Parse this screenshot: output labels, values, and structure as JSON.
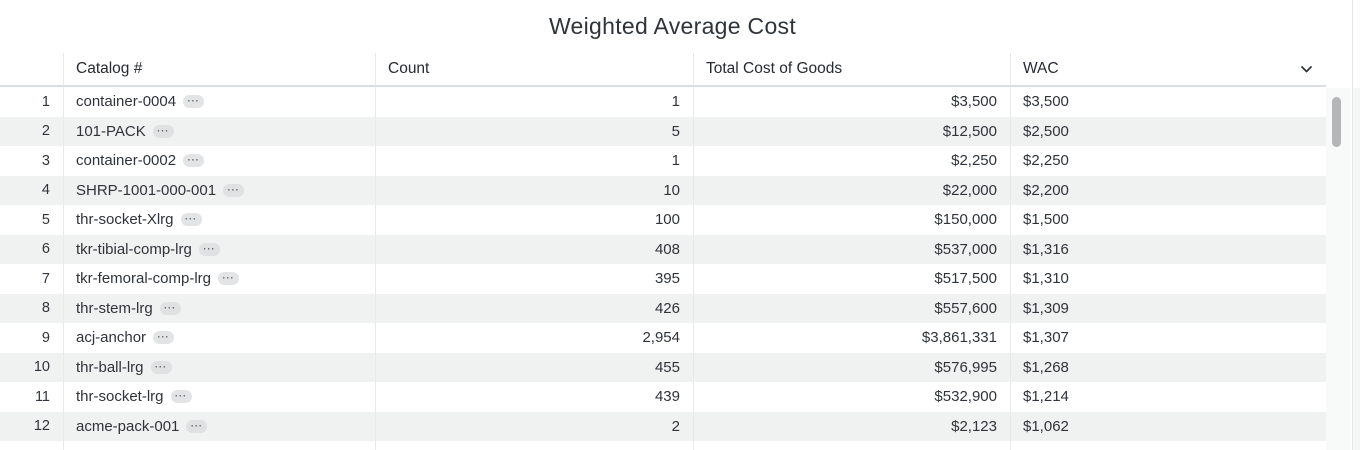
{
  "title": "Weighted Average Cost",
  "icons": {
    "ellipsis": "···",
    "header_chevron": "chevron-down"
  },
  "colors": {
    "text": "#2f343a",
    "stripe": "#f0f1f1",
    "column_border": "#e8eaea",
    "header_underline": "#dbdee0",
    "badge_bg": "#e3e4e5",
    "scrollbar_thumb": "#b4b6b7"
  },
  "table": {
    "columns": [
      {
        "key": "index",
        "label": ""
      },
      {
        "key": "catalog",
        "label": "Catalog #"
      },
      {
        "key": "count",
        "label": "Count"
      },
      {
        "key": "total_cost",
        "label": "Total Cost of Goods"
      },
      {
        "key": "wac",
        "label": "WAC"
      }
    ],
    "rows": [
      {
        "index": "1",
        "catalog": "container-0004",
        "count": "1",
        "total_cost": "$3,500",
        "wac": "$3,500"
      },
      {
        "index": "2",
        "catalog": "101-PACK",
        "count": "5",
        "total_cost": "$12,500",
        "wac": "$2,500"
      },
      {
        "index": "3",
        "catalog": "container-0002",
        "count": "1",
        "total_cost": "$2,250",
        "wac": "$2,250"
      },
      {
        "index": "4",
        "catalog": "SHRP-1001-000-001",
        "count": "10",
        "total_cost": "$22,000",
        "wac": "$2,200"
      },
      {
        "index": "5",
        "catalog": "thr-socket-Xlrg",
        "count": "100",
        "total_cost": "$150,000",
        "wac": "$1,500"
      },
      {
        "index": "6",
        "catalog": "tkr-tibial-comp-lrg",
        "count": "408",
        "total_cost": "$537,000",
        "wac": "$1,316"
      },
      {
        "index": "7",
        "catalog": "tkr-femoral-comp-lrg",
        "count": "395",
        "total_cost": "$517,500",
        "wac": "$1,310"
      },
      {
        "index": "8",
        "catalog": "thr-stem-lrg",
        "count": "426",
        "total_cost": "$557,600",
        "wac": "$1,309"
      },
      {
        "index": "9",
        "catalog": "acj-anchor",
        "count": "2,954",
        "total_cost": "$3,861,331",
        "wac": "$1,307"
      },
      {
        "index": "10",
        "catalog": "thr-ball-lrg",
        "count": "455",
        "total_cost": "$576,995",
        "wac": "$1,268"
      },
      {
        "index": "11",
        "catalog": "thr-socket-lrg",
        "count": "439",
        "total_cost": "$532,900",
        "wac": "$1,214"
      },
      {
        "index": "12",
        "catalog": "acme-pack-001",
        "count": "2",
        "total_cost": "$2,123",
        "wac": "$1,062"
      }
    ]
  }
}
